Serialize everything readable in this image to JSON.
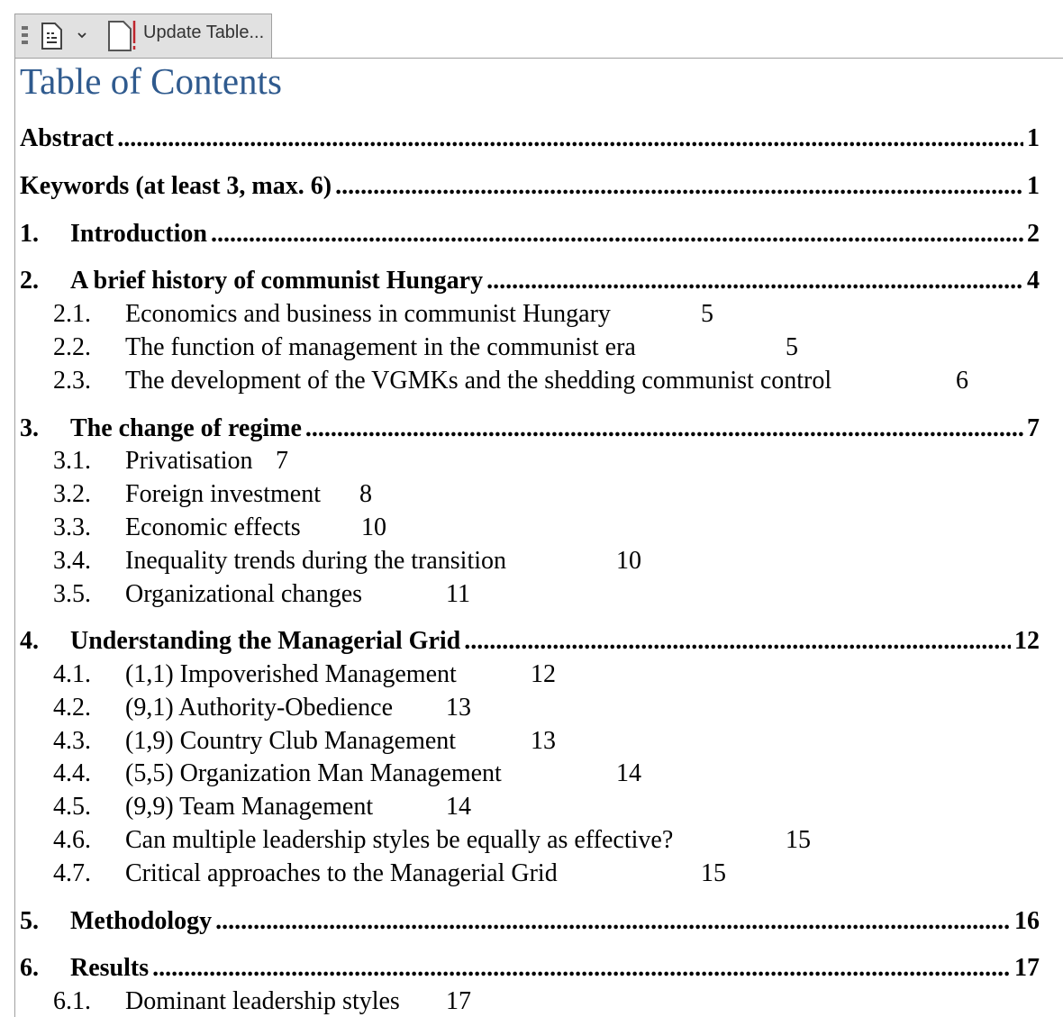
{
  "toolbar": {
    "update_label": "Update Table...",
    "icons": [
      "grip-icon",
      "toc-icon",
      "chevron-down-icon",
      "update-table-icon"
    ]
  },
  "title": "Table of Contents",
  "entries": {
    "abstract": {
      "num": "",
      "title": "Abstract",
      "page": "1"
    },
    "keywords": {
      "num": "",
      "title": "Keywords (at least 3, max. 6)",
      "page": "1"
    },
    "e1": {
      "num": "1.",
      "title": "Introduction",
      "page": "2"
    },
    "e2": {
      "num": "2.",
      "title": "A brief history of communist Hungary",
      "page": "4"
    },
    "e2_1": {
      "num": "2.1.",
      "title": "Economics and business in communist Hungary",
      "page": "5"
    },
    "e2_2": {
      "num": "2.2.",
      "title": "The function of management in the communist era",
      "page": "5"
    },
    "e2_3": {
      "num": "2.3.",
      "title": "The development of the VGMKs and the shedding communist control",
      "page": "6"
    },
    "e3": {
      "num": "3.",
      "title": "The change of regime",
      "page": "7"
    },
    "e3_1": {
      "num": "3.1.",
      "title": "Privatisation",
      "page": "7"
    },
    "e3_2": {
      "num": "3.2.",
      "title": "Foreign investment",
      "page": "8"
    },
    "e3_3": {
      "num": "3.3.",
      "title": "Economic effects",
      "page": "10"
    },
    "e3_4": {
      "num": "3.4.",
      "title": "Inequality trends during the transition",
      "page": "10"
    },
    "e3_5": {
      "num": "3.5.",
      "title": "Organizational changes",
      "page": "11"
    },
    "e4": {
      "num": "4.",
      "title": "Understanding the Managerial Grid",
      "page": "12"
    },
    "e4_1": {
      "num": "4.1.",
      "title": "(1,1) Impoverished Management",
      "page": "12"
    },
    "e4_2": {
      "num": "4.2.",
      "title": "(9,1) Authority-Obedience",
      "page": "13"
    },
    "e4_3": {
      "num": "4.3.",
      "title": "(1,9) Country Club Management",
      "page": "13"
    },
    "e4_4": {
      "num": "4.4.",
      "title": "(5,5) Organization Man Management",
      "page": "14"
    },
    "e4_5": {
      "num": "4.5.",
      "title": "(9,9) Team Management",
      "page": "14"
    },
    "e4_6": {
      "num": "4.6.",
      "title": "Can multiple leadership styles be equally as effective?",
      "page": "15"
    },
    "e4_7": {
      "num": "4.7.",
      "title": "Critical approaches to the Managerial Grid",
      "page": "15"
    },
    "e5": {
      "num": "5.",
      "title": "Methodology",
      "page": "16"
    },
    "e6": {
      "num": "6.",
      "title": "Results",
      "page": "17"
    },
    "e6_1": {
      "num": "6.1.",
      "title": "Dominant leadership styles",
      "page": "17"
    }
  }
}
